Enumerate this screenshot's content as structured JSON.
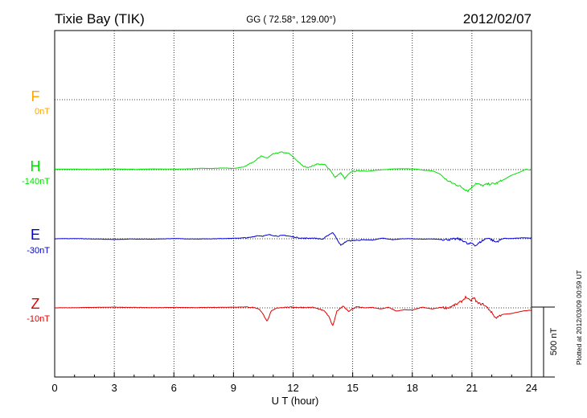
{
  "chart_data": {
    "type": "line",
    "station": "Tixie Bay (TIK)",
    "coords": "GG ( 72.58°, 129.00°)",
    "date": "2012/02/07",
    "xlabel": "U T (hour)",
    "xlim": [
      0,
      24
    ],
    "xticks": [
      "0",
      "3",
      "6",
      "9",
      "12",
      "15",
      "18",
      "21",
      "24"
    ],
    "scale_label": "500 nT",
    "plotted_note": "Plotted at 2012/03/09 00:59 UT",
    "grid": true,
    "series": [
      {
        "name": "F",
        "baseline": "0nT",
        "color": "#ffa500",
        "values": []
      },
      {
        "name": "H",
        "baseline": "-140nT",
        "color": "#00e000",
        "points": [
          [
            0,
            2
          ],
          [
            1,
            2
          ],
          [
            2,
            1
          ],
          [
            3,
            3
          ],
          [
            4,
            1
          ],
          [
            5,
            3
          ],
          [
            6,
            2
          ],
          [
            6.8,
            3
          ],
          [
            7.4,
            6
          ],
          [
            8,
            5
          ],
          [
            8.5,
            8
          ],
          [
            9,
            5
          ],
          [
            9.5,
            12
          ],
          [
            10,
            35
          ],
          [
            10.4,
            60
          ],
          [
            10.7,
            52
          ],
          [
            11,
            70
          ],
          [
            11.4,
            78
          ],
          [
            11.8,
            72
          ],
          [
            12.2,
            40
          ],
          [
            12.5,
            15
          ],
          [
            12.8,
            10
          ],
          [
            13.2,
            25
          ],
          [
            13.6,
            22
          ],
          [
            13.9,
            -5
          ],
          [
            14.1,
            -35
          ],
          [
            14.4,
            -15
          ],
          [
            14.6,
            -40
          ],
          [
            14.9,
            -10
          ],
          [
            15.3,
            -5
          ],
          [
            15.8,
            -7
          ],
          [
            16.3,
            -2
          ],
          [
            17,
            3
          ],
          [
            17.6,
            4
          ],
          [
            18.2,
            2
          ],
          [
            18.6,
            -3
          ],
          [
            19,
            -5
          ],
          [
            19.4,
            -20
          ],
          [
            19.7,
            -45
          ],
          [
            20,
            -60
          ],
          [
            20.3,
            -70
          ],
          [
            20.6,
            -85
          ],
          [
            20.8,
            -95
          ],
          [
            21,
            -78
          ],
          [
            21.2,
            -60
          ],
          [
            21.5,
            -72
          ],
          [
            21.8,
            -65
          ],
          [
            22.2,
            -62
          ],
          [
            22.6,
            -45
          ],
          [
            23,
            -25
          ],
          [
            23.4,
            -12
          ],
          [
            23.7,
            2
          ],
          [
            24,
            -3
          ]
        ]
      },
      {
        "name": "E",
        "baseline": "-30nT",
        "color": "#0000d0",
        "points": [
          [
            0,
            0
          ],
          [
            1,
            1
          ],
          [
            2,
            -1
          ],
          [
            3,
            -3
          ],
          [
            4,
            -1
          ],
          [
            5,
            -2
          ],
          [
            6,
            1
          ],
          [
            7,
            -1
          ],
          [
            8,
            0
          ],
          [
            9,
            2
          ],
          [
            9.8,
            5
          ],
          [
            10.2,
            14
          ],
          [
            10.5,
            12
          ],
          [
            10.8,
            18
          ],
          [
            11.2,
            12
          ],
          [
            11.6,
            15
          ],
          [
            12,
            8
          ],
          [
            12.5,
            2
          ],
          [
            13,
            3
          ],
          [
            13.5,
            -2
          ],
          [
            13.8,
            18
          ],
          [
            14,
            28
          ],
          [
            14.2,
            0
          ],
          [
            14.4,
            -30
          ],
          [
            14.7,
            -10
          ],
          [
            15,
            -8
          ],
          [
            15.5,
            -5
          ],
          [
            16,
            -6
          ],
          [
            16.5,
            3
          ],
          [
            17,
            -4
          ],
          [
            17.5,
            0
          ],
          [
            18,
            0
          ],
          [
            18.5,
            -2
          ],
          [
            19,
            -1
          ],
          [
            19.5,
            -3
          ],
          [
            20,
            -3
          ],
          [
            20.3,
            0
          ],
          [
            20.6,
            -10
          ],
          [
            20.8,
            -25
          ],
          [
            21,
            -20
          ],
          [
            21.2,
            -30
          ],
          [
            21.5,
            -10
          ],
          [
            21.8,
            5
          ],
          [
            22.2,
            -15
          ],
          [
            22.6,
            2
          ],
          [
            23,
            1
          ],
          [
            23.5,
            4
          ],
          [
            24,
            3
          ]
        ]
      },
      {
        "name": "Z",
        "baseline": "-10nT",
        "color": "#e00000",
        "points": [
          [
            0,
            0
          ],
          [
            1,
            1
          ],
          [
            2,
            2
          ],
          [
            3,
            3
          ],
          [
            4,
            2
          ],
          [
            5,
            1
          ],
          [
            6,
            2
          ],
          [
            7,
            1
          ],
          [
            8,
            2
          ],
          [
            9,
            3
          ],
          [
            9.5,
            4
          ],
          [
            10,
            2
          ],
          [
            10.3,
            -5
          ],
          [
            10.5,
            -30
          ],
          [
            10.7,
            -60
          ],
          [
            10.9,
            -15
          ],
          [
            11.2,
            0
          ],
          [
            11.6,
            3
          ],
          [
            12,
            3
          ],
          [
            12.5,
            2
          ],
          [
            13,
            2
          ],
          [
            13.3,
            -5
          ],
          [
            13.6,
            -15
          ],
          [
            13.8,
            -40
          ],
          [
            14,
            -80
          ],
          [
            14.2,
            -15
          ],
          [
            14.5,
            8
          ],
          [
            14.8,
            -15
          ],
          [
            15.2,
            5
          ],
          [
            15.6,
            0
          ],
          [
            16,
            2
          ],
          [
            16.4,
            -5
          ],
          [
            16.8,
            3
          ],
          [
            17.2,
            -15
          ],
          [
            17.6,
            -8
          ],
          [
            18,
            -10
          ],
          [
            18.5,
            3
          ],
          [
            19,
            -5
          ],
          [
            19.4,
            2
          ],
          [
            19.8,
            0
          ],
          [
            20.2,
            15
          ],
          [
            20.5,
            30
          ],
          [
            20.7,
            50
          ],
          [
            20.9,
            30
          ],
          [
            21.1,
            45
          ],
          [
            21.3,
            20
          ],
          [
            21.6,
            15
          ],
          [
            21.9,
            -10
          ],
          [
            22.2,
            -45
          ],
          [
            22.5,
            -30
          ],
          [
            23,
            -25
          ],
          [
            23.5,
            -15
          ],
          [
            24,
            -10
          ]
        ]
      }
    ]
  }
}
